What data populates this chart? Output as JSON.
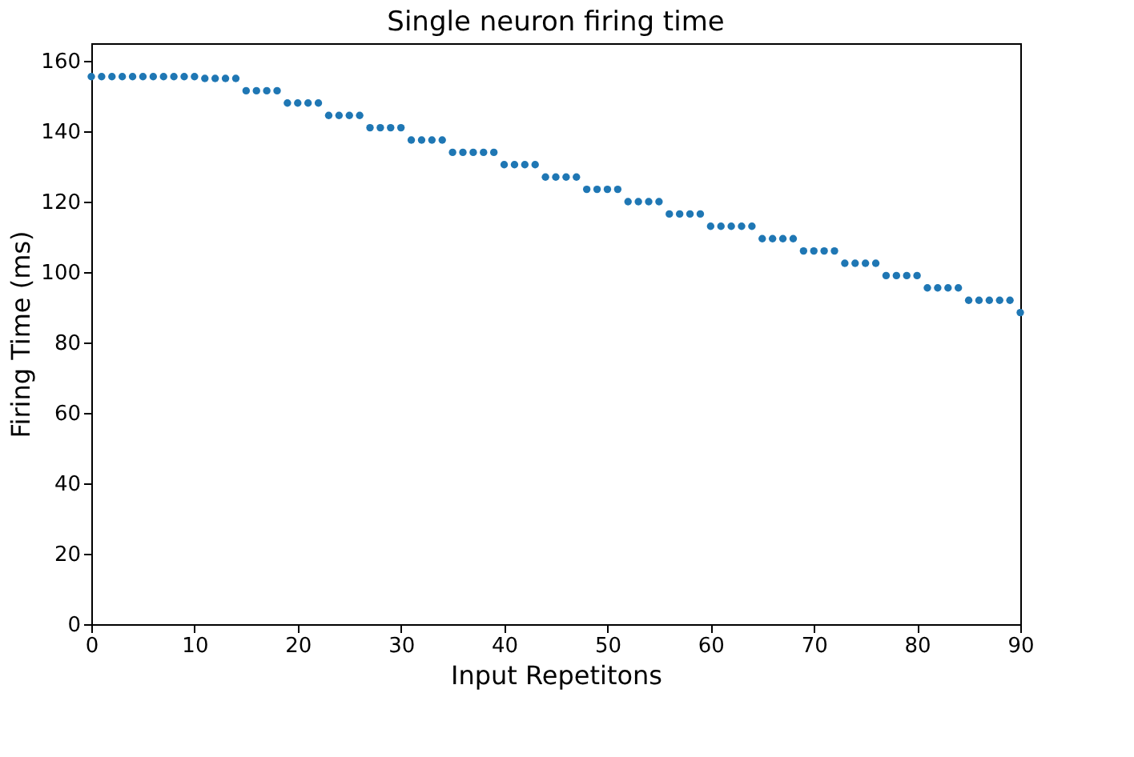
{
  "chart_data": {
    "type": "scatter",
    "title": "Single neuron firing time",
    "xlabel": "Input Repetitons",
    "ylabel": "Firing Time (ms)",
    "x": [
      0,
      1,
      2,
      3,
      4,
      5,
      6,
      7,
      8,
      9,
      10,
      11,
      12,
      13,
      14,
      15,
      16,
      17,
      18,
      19,
      20,
      21,
      22,
      23,
      24,
      25,
      26,
      27,
      28,
      29,
      30,
      31,
      32,
      33,
      34,
      35,
      36,
      37,
      38,
      39,
      40,
      41,
      42,
      43,
      44,
      45,
      46,
      47,
      48,
      49,
      50,
      51,
      52,
      53,
      54,
      55,
      56,
      57,
      58,
      59,
      60,
      61,
      62,
      63,
      64,
      65,
      66,
      67,
      68,
      69,
      70,
      71,
      72,
      73,
      74,
      75,
      76,
      77,
      78,
      79,
      80,
      81,
      82,
      83,
      84,
      85,
      86,
      87,
      88,
      89,
      90
    ],
    "series": [
      {
        "color": "#1f77b4",
        "values": [
          155.5,
          155.5,
          155.5,
          155.5,
          155.5,
          155.5,
          155.5,
          155.5,
          155.5,
          155.5,
          155.5,
          155,
          155,
          155,
          155,
          151.5,
          151.5,
          151.5,
          151.5,
          148,
          148,
          148,
          148,
          144.5,
          144.5,
          144.5,
          144.5,
          141,
          141,
          141,
          141,
          137.5,
          137.5,
          137.5,
          137.5,
          134,
          134,
          134,
          134,
          134,
          130.5,
          130.5,
          130.5,
          130.5,
          127,
          127,
          127,
          127,
          123.5,
          123.5,
          123.5,
          123.5,
          120,
          120,
          120,
          120,
          116.5,
          116.5,
          116.5,
          116.5,
          113,
          113,
          113,
          113,
          113,
          109.5,
          109.5,
          109.5,
          109.5,
          106,
          106,
          106,
          106,
          102.5,
          102.5,
          102.5,
          102.5,
          99,
          99,
          99,
          99,
          95.5,
          95.5,
          95.5,
          95.5,
          92,
          92,
          92,
          92,
          92,
          88.5
        ]
      }
    ],
    "xlim": [
      0,
      90
    ],
    "xticks": [
      0,
      10,
      20,
      30,
      40,
      50,
      60,
      70,
      80,
      90
    ],
    "ylim": [
      0,
      165
    ],
    "yticks": [
      0,
      20,
      40,
      60,
      80,
      100,
      120,
      140,
      160
    ],
    "grid": false,
    "marker": "circle"
  }
}
